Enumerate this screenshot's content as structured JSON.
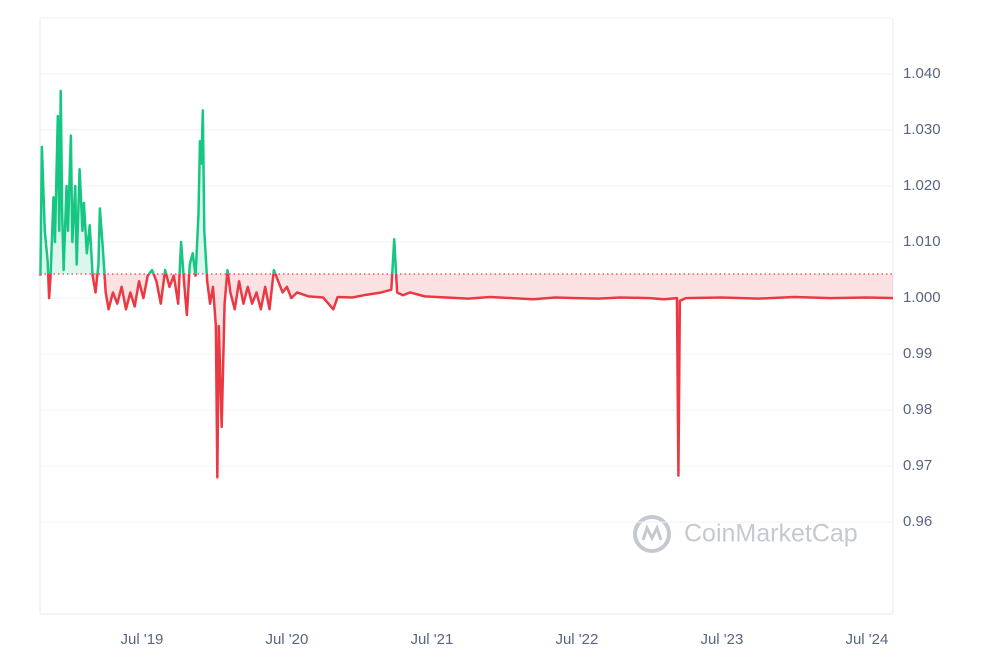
{
  "chart_data": {
    "type": "line",
    "watermark": "CoinMarketCap",
    "x": [
      2018.8,
      2018.81,
      2018.83,
      2018.85,
      2018.86,
      2018.87,
      2018.89,
      2018.9,
      2018.92,
      2018.93,
      2018.94,
      2018.95,
      2018.96,
      2018.98,
      2018.99,
      2019.01,
      2019.02,
      2019.04,
      2019.05,
      2019.07,
      2019.09,
      2019.1,
      2019.12,
      2019.14,
      2019.16,
      2019.18,
      2019.2,
      2019.21,
      2019.23,
      2019.25,
      2019.27,
      2019.3,
      2019.33,
      2019.36,
      2019.39,
      2019.42,
      2019.45,
      2019.48,
      2019.51,
      2019.54,
      2019.57,
      2019.6,
      2019.63,
      2019.66,
      2019.69,
      2019.72,
      2019.75,
      2019.77,
      2019.79,
      2019.81,
      2019.83,
      2019.85,
      2019.87,
      2019.89,
      2019.9,
      2019.91,
      2019.92,
      2019.93,
      2019.95,
      2019.97,
      2019.99,
      2020.01,
      2020.02,
      2020.03,
      2020.05,
      2020.07,
      2020.09,
      2020.11,
      2020.14,
      2020.17,
      2020.2,
      2020.23,
      2020.26,
      2020.29,
      2020.32,
      2020.35,
      2020.38,
      2020.41,
      2020.44,
      2020.47,
      2020.5,
      2020.53,
      2020.57,
      2020.65,
      2020.75,
      2020.82,
      2020.85,
      2020.95,
      2021.05,
      2021.15,
      2021.22,
      2021.24,
      2021.26,
      2021.3,
      2021.35,
      2021.45,
      2021.6,
      2021.75,
      2021.9,
      2022.05,
      2022.2,
      2022.35,
      2022.5,
      2022.65,
      2022.8,
      2023.0,
      2023.1,
      2023.19,
      2023.2,
      2023.21,
      2023.25,
      2023.5,
      2023.75,
      2024.0,
      2024.25,
      2024.5,
      2024.68
    ],
    "series": [
      {
        "color": "#16c784",
        "color_below": "#ea3943",
        "values": [
          1.004,
          1.027,
          1.012,
          1.0065,
          1.0,
          1.004,
          1.018,
          1.01,
          1.0325,
          1.012,
          1.037,
          1.015,
          1.005,
          1.02,
          1.012,
          1.029,
          1.01,
          1.02,
          1.006,
          1.023,
          1.012,
          1.017,
          1.008,
          1.013,
          1.004,
          1.001,
          1.006,
          1.016,
          1.009,
          1.001,
          0.998,
          1.001,
          0.999,
          1.002,
          0.998,
          1.001,
          0.9985,
          1.003,
          1.0,
          1.004,
          1.005,
          1.003,
          0.999,
          1.005,
          1.002,
          1.004,
          0.999,
          1.01,
          1.003,
          0.997,
          1.006,
          1.008,
          1.004,
          1.015,
          1.028,
          1.024,
          1.0335,
          1.012,
          1.003,
          0.999,
          1.002,
          0.995,
          0.968,
          0.995,
          0.977,
          0.999,
          1.005,
          1.001,
          0.998,
          1.003,
          0.999,
          1.002,
          0.999,
          1.001,
          0.998,
          1.002,
          0.998,
          1.005,
          1.003,
          1.001,
          1.002,
          1.0,
          1.001,
          1.0003,
          1.0001,
          0.998,
          1.0002,
          1.0001,
          1.0006,
          1.001,
          1.0015,
          1.0105,
          1.001,
          1.0005,
          1.001,
          1.0003,
          1.0001,
          0.9999,
          1.0002,
          1.0,
          0.9998,
          1.0001,
          1.0,
          0.9999,
          1.0001,
          1.0,
          0.9998,
          1.0,
          0.9683,
          0.9995,
          1.0,
          1.0001,
          0.9999,
          1.0002,
          1.0,
          1.0001,
          1.0
        ]
      }
    ],
    "baseline": 1.0043,
    "xlim": [
      2018.797,
      2024.68
    ],
    "xticks": [
      {
        "value": 2019.5,
        "label": "Jul '19"
      },
      {
        "value": 2020.5,
        "label": "Jul '20"
      },
      {
        "value": 2021.5,
        "label": "Jul '21"
      },
      {
        "value": 2022.5,
        "label": "Jul '22"
      },
      {
        "value": 2023.5,
        "label": "Jul '23"
      },
      {
        "value": 2024.5,
        "label": "Jul '24"
      }
    ],
    "ylim": [
      0.9436,
      1.05
    ],
    "yticks": [
      0.96,
      0.97,
      0.98,
      0.99,
      {
        "value": 1.0,
        "label": "1.000"
      },
      {
        "value": 1.01,
        "label": "1.010"
      },
      {
        "value": 1.02,
        "label": "1.020"
      },
      {
        "value": 1.03,
        "label": "1.030"
      },
      {
        "value": 1.04,
        "label": "1.040"
      }
    ],
    "grid": true
  }
}
